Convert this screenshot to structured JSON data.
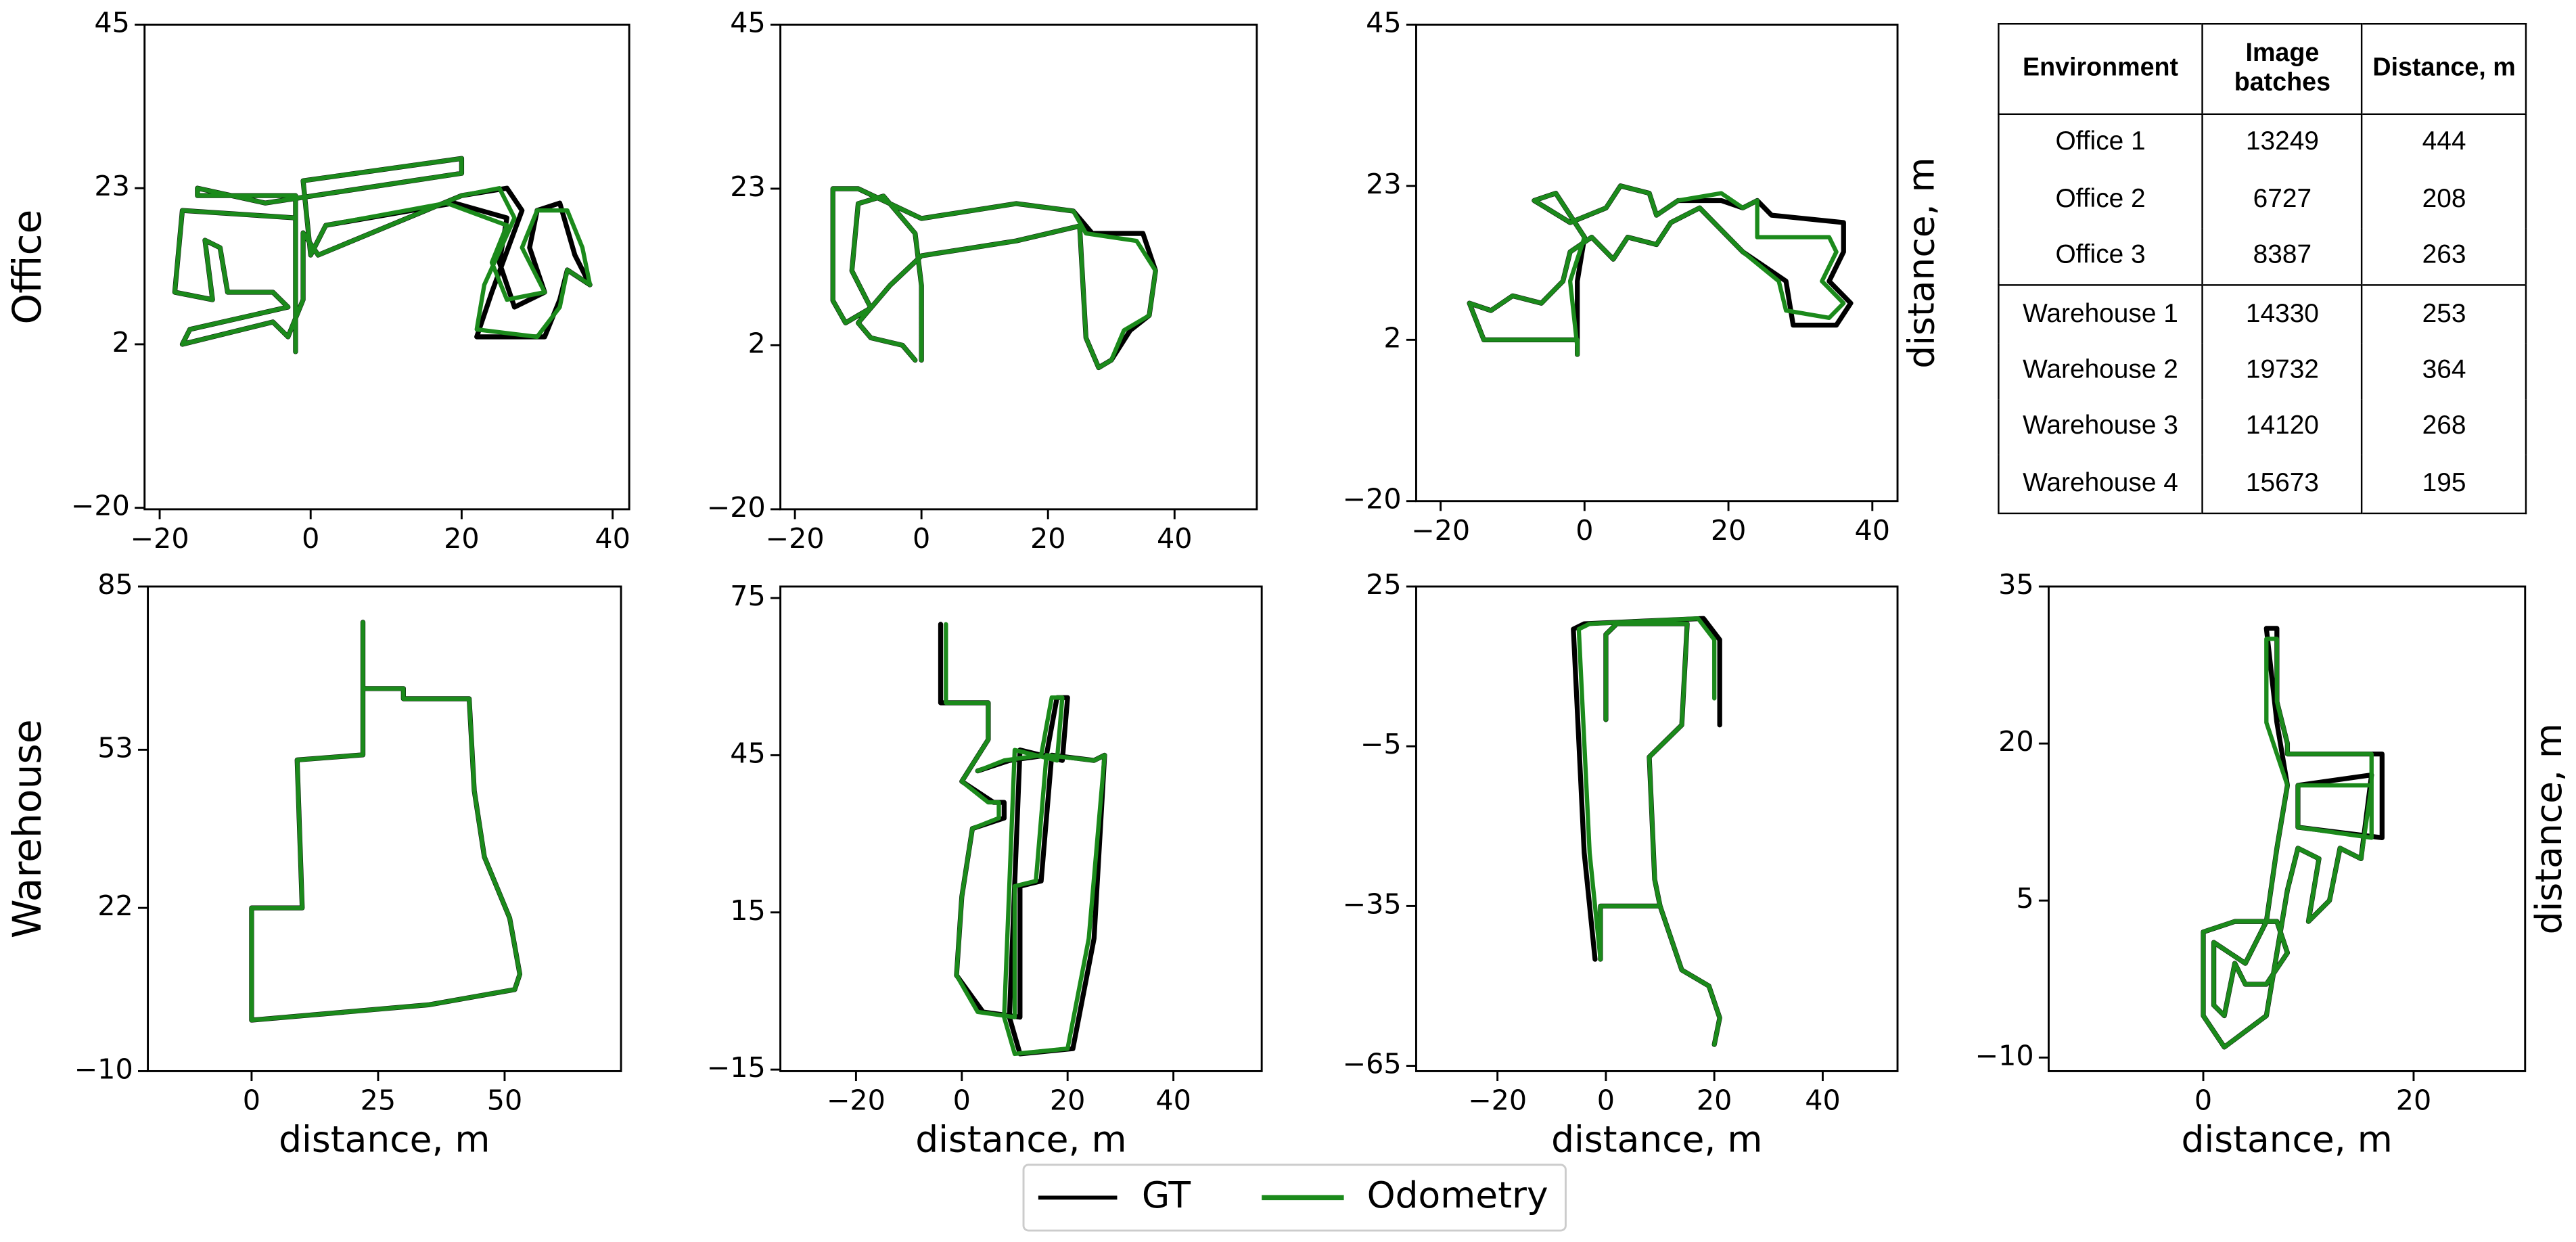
{
  "chart_data": [
    {
      "type": "line",
      "ylabel": "Office",
      "xlim": [
        -22,
        42.2
      ],
      "ylim": [
        -20.2,
        45
      ],
      "xticks": [
        {
          "value": -20,
          "label": "−20"
        },
        0,
        20,
        40
      ],
      "yticks": [
        {
          "value": -20,
          "label": "−20"
        },
        2,
        23,
        45
      ],
      "series": [
        {
          "name": "GT",
          "color": "#000000",
          "x": [
            -2,
            -2,
            -17,
            -18,
            -13,
            -14,
            -12,
            -11,
            -5,
            -3,
            -16,
            -17,
            -5,
            -3,
            -1,
            -1,
            1,
            20,
            26,
            28,
            24,
            22,
            31,
            33,
            34,
            37,
            35,
            33,
            30,
            29,
            31,
            27,
            25,
            26,
            19,
            2,
            0,
            -1,
            20,
            20,
            -6,
            -15,
            -15,
            -2,
            -2
          ],
          "values": [
            1,
            19,
            20,
            9,
            8,
            16,
            15,
            9,
            9,
            7,
            4,
            2,
            5,
            3,
            8,
            17,
            14,
            22,
            23,
            20,
            9,
            3,
            3,
            8,
            12,
            10,
            14,
            21,
            20,
            15,
            9,
            7,
            13,
            19,
            21,
            18,
            14,
            24,
            27,
            25,
            21,
            23,
            22,
            22,
            1
          ]
        },
        {
          "name": "Odometry",
          "color": "#1b8a1b",
          "x": [
            -2,
            -2,
            -17,
            -18,
            -13,
            -14,
            -12,
            -11,
            -5,
            -3,
            -16,
            -17,
            -5,
            -3,
            -1,
            -1,
            1,
            20,
            25,
            27,
            23,
            22,
            30,
            33,
            34,
            37,
            36,
            34,
            30,
            28,
            31,
            26,
            24,
            26,
            18,
            2,
            0,
            -1,
            20,
            20,
            -6,
            -15,
            -15,
            -2,
            -2
          ],
          "values": [
            1,
            19,
            20,
            9,
            8,
            16,
            15,
            9,
            9,
            7,
            4,
            2,
            5,
            3,
            8,
            17,
            14,
            22,
            23,
            19,
            10,
            4,
            3,
            7,
            12,
            10,
            15,
            20,
            20,
            15,
            9,
            8,
            13,
            18,
            21,
            18,
            14,
            24,
            27,
            25,
            21,
            23,
            22,
            22,
            1
          ]
        }
      ]
    },
    {
      "type": "line",
      "xlim": [
        -22.3,
        53
      ],
      "ylim": [
        -20,
        45
      ],
      "xticks": [
        {
          "value": -20,
          "label": "−20"
        },
        0,
        20,
        40
      ],
      "yticks": [
        {
          "value": -20,
          "label": "−20"
        },
        2,
        23,
        45
      ],
      "series": [
        {
          "name": "GT",
          "color": "#000000",
          "x": [
            0,
            0,
            -1,
            -6,
            -10,
            -11,
            -8,
            -12,
            -14,
            -14,
            -10,
            0,
            15,
            24,
            27,
            35,
            37,
            36,
            33,
            30,
            28,
            26,
            25,
            15,
            0,
            -5,
            -10,
            -8,
            -3,
            -1
          ],
          "values": [
            0,
            10,
            17,
            22,
            21,
            12,
            7,
            5,
            8,
            23,
            23,
            19,
            21,
            20,
            17,
            17,
            12,
            6,
            4,
            0,
            -1,
            3,
            18,
            16,
            14,
            10,
            5,
            3,
            2,
            0
          ]
        },
        {
          "name": "Odometry",
          "color": "#1b8a1b",
          "x": [
            0,
            0,
            -1,
            -6,
            -10,
            -11,
            -8,
            -12,
            -14,
            -14,
            -10,
            0,
            15,
            24,
            26,
            34,
            37,
            36,
            32,
            30,
            28,
            26,
            25,
            15,
            0,
            -5,
            -10,
            -8,
            -3,
            -1
          ],
          "values": [
            0,
            10,
            17,
            22,
            21,
            12,
            7,
            5,
            8,
            23,
            23,
            19,
            21,
            20,
            17,
            16,
            12,
            6,
            4,
            0,
            -1,
            3,
            18,
            16,
            14,
            10,
            5,
            3,
            2,
            0
          ]
        }
      ]
    },
    {
      "type": "line",
      "ylabel_right": "distance, m",
      "xlim": [
        -23.4,
        43.5
      ],
      "ylim": [
        -20,
        45
      ],
      "xticks": [
        {
          "value": -20,
          "label": "−20"
        },
        0,
        20,
        40
      ],
      "yticks": [
        {
          "value": -20,
          "label": "−20"
        },
        2,
        23,
        45
      ],
      "series": [
        {
          "name": "GT",
          "color": "#000000",
          "x": [
            -1,
            -1,
            0,
            -4,
            -7,
            -2,
            3,
            5,
            9,
            10,
            13,
            19,
            22,
            24,
            26,
            36,
            36,
            34,
            37,
            35,
            29,
            28,
            22,
            20,
            16,
            12,
            10,
            6,
            4,
            1,
            -2,
            -3,
            -6,
            -10,
            -13,
            -16,
            -14,
            -1,
            -1
          ],
          "values": [
            1,
            10,
            16,
            22,
            21,
            18,
            20,
            23,
            22,
            19,
            21,
            21,
            20,
            21,
            19,
            18,
            14,
            10,
            7,
            4,
            4,
            10,
            14,
            16,
            20,
            18,
            15,
            16,
            13,
            16,
            14,
            10,
            7,
            8,
            6,
            7,
            2,
            2,
            0
          ]
        },
        {
          "name": "Odometry",
          "color": "#1b8a1b",
          "x": [
            -1,
            -2,
            0,
            -4,
            -7,
            -2,
            3,
            5,
            9,
            10,
            13,
            19,
            22,
            24,
            24,
            34,
            35,
            33,
            36,
            34,
            28,
            27,
            22,
            20,
            16,
            12,
            10,
            6,
            4,
            1,
            -2,
            -3,
            -6,
            -10,
            -13,
            -16,
            -14,
            -1,
            -1
          ],
          "values": [
            1,
            10,
            16,
            22,
            21,
            18,
            20,
            23,
            22,
            19,
            21,
            22,
            20,
            21,
            16,
            16,
            14,
            10,
            7,
            5,
            6,
            10,
            14,
            16,
            20,
            18,
            15,
            16,
            13,
            16,
            14,
            10,
            7,
            8,
            6,
            7,
            2,
            2,
            0
          ]
        }
      ]
    },
    {
      "type": "line",
      "ylabel": "Warehouse",
      "xlabel": "distance, m",
      "xlim": [
        -20.5,
        73
      ],
      "ylim": [
        -10,
        85
      ],
      "xticks": [
        0,
        25,
        50
      ],
      "yticks": [
        {
          "value": -10,
          "label": "−10"
        },
        22,
        53,
        85
      ],
      "series": [
        {
          "name": "GT",
          "color": "#000000",
          "x": [
            0,
            0,
            10,
            9,
            22,
            22,
            22,
            30,
            30,
            43,
            44,
            46,
            51,
            53,
            52,
            35,
            0
          ],
          "values": [
            0,
            22,
            22,
            51,
            52,
            78,
            65,
            65,
            63,
            63,
            45,
            32,
            20,
            9,
            6,
            3,
            0
          ]
        },
        {
          "name": "Odometry",
          "color": "#1b8a1b",
          "x": [
            0,
            0,
            10,
            9,
            22,
            22,
            22,
            30,
            30,
            43,
            44,
            46,
            51,
            53,
            52,
            35,
            0
          ],
          "values": [
            0,
            22,
            22,
            51,
            52,
            78,
            65,
            65,
            63,
            63,
            45,
            32,
            20,
            9,
            6,
            3,
            0
          ]
        }
      ]
    },
    {
      "type": "line",
      "xlabel": "distance, m",
      "xlim": [
        -34.3,
        56.7
      ],
      "ylim": [
        -15.3,
        77.2
      ],
      "xticks": [
        {
          "value": -20,
          "label": "−20"
        },
        0,
        20,
        40
      ],
      "yticks": [
        {
          "value": -15,
          "label": "−15"
        },
        15,
        45,
        75
      ],
      "series": [
        {
          "name": "GT",
          "color": "#000000",
          "x": [
            -4,
            -4,
            5,
            5,
            0,
            6,
            8,
            8,
            2,
            0,
            -1,
            4,
            11,
            11,
            15,
            17,
            25,
            27,
            25,
            21,
            11,
            9,
            11,
            19,
            20,
            18,
            16,
            9,
            3
          ],
          "values": [
            70,
            55,
            55,
            48,
            40,
            36,
            36,
            33,
            31,
            18,
            3,
            -4,
            -5,
            20,
            21,
            45,
            44,
            45,
            10,
            -11,
            -12,
            -5,
            46,
            44,
            56,
            56,
            45,
            44,
            42
          ]
        },
        {
          "name": "Odometry",
          "color": "#1b8a1b",
          "x": [
            -3,
            -3,
            5,
            5,
            0,
            5,
            7,
            7,
            2,
            0,
            -1,
            3,
            10,
            10,
            14,
            16,
            25,
            27,
            24,
            20,
            10,
            8,
            10,
            18,
            19,
            17,
            15,
            8,
            3
          ],
          "values": [
            70,
            55,
            55,
            48,
            40,
            36,
            36,
            33,
            31,
            18,
            3,
            -4,
            -5,
            20,
            21,
            45,
            44,
            45,
            10,
            -11,
            -12,
            -5,
            46,
            44,
            56,
            56,
            45,
            44,
            42
          ]
        }
      ]
    },
    {
      "type": "line",
      "xlabel": "distance, m",
      "xlim": [
        -35,
        53.8
      ],
      "ylim": [
        -66,
        25
      ],
      "xticks": [
        {
          "value": -20,
          "label": "−20"
        },
        0,
        20,
        40
      ],
      "yticks": [
        {
          "value": -65,
          "label": "−65"
        },
        {
          "value": -35,
          "label": "−35"
        },
        {
          "value": -5,
          "label": "−5"
        },
        25
      ],
      "series": [
        {
          "name": "GT",
          "color": "#000000",
          "x": [
            0,
            0,
            2,
            15,
            14,
            8,
            9,
            10,
            14,
            19,
            21,
            20,
            null,
            -1,
            -1,
            10,
            11,
            null,
            -2,
            -4,
            -6,
            -4,
            18,
            21,
            21
          ],
          "values": [
            0,
            16,
            18,
            18,
            -1,
            -7,
            -30,
            -35,
            -47,
            -50,
            -56,
            -61,
            null,
            -45,
            -35,
            -35,
            -38,
            null,
            -45,
            -25,
            17,
            18,
            19,
            15,
            -1
          ]
        },
        {
          "name": "Odometry",
          "color": "#1b8a1b",
          "x": [
            0,
            0,
            2,
            15,
            14,
            8,
            9,
            10,
            14,
            19,
            21,
            20,
            null,
            -1,
            -1,
            10,
            11,
            null,
            -1,
            -3,
            -5,
            -3,
            17,
            20,
            20
          ],
          "values": [
            0,
            16,
            18,
            18,
            -1,
            -7,
            -30,
            -35,
            -47,
            -50,
            -56,
            -61,
            null,
            -45,
            -35,
            -35,
            -38,
            null,
            -45,
            -25,
            17,
            18,
            19,
            15,
            4
          ]
        }
      ]
    },
    {
      "type": "line",
      "xlabel": "distance, m",
      "ylabel_right": "distance, m",
      "xlim": [
        -14.7,
        30.6
      ],
      "ylim": [
        -11.3,
        35
      ],
      "xticks": [
        0,
        20
      ],
      "yticks": [
        {
          "value": -10,
          "label": "−10"
        },
        5,
        20,
        35
      ],
      "series": [
        {
          "name": "GT",
          "color": "#000000",
          "x": [
            6,
            7,
            7,
            8,
            8,
            17,
            17,
            9,
            9,
            16,
            15,
            13,
            12,
            10,
            11,
            9,
            8,
            7,
            6,
            2,
            0,
            0,
            3,
            7,
            8,
            6,
            4,
            3,
            2,
            1,
            1,
            4,
            6,
            7,
            8,
            7,
            6
          ],
          "values": [
            31,
            31,
            24,
            20,
            19,
            19,
            11,
            12,
            16,
            17,
            9,
            10,
            5,
            3,
            9,
            10,
            6,
            0,
            -6,
            -9,
            -6,
            2,
            3,
            3,
            0,
            -3,
            -3,
            -1,
            -6,
            -5,
            1,
            -1,
            3,
            10,
            16,
            22,
            31
          ]
        },
        {
          "name": "Odometry",
          "color": "#1b8a1b",
          "x": [
            6,
            7,
            7,
            8,
            8,
            16,
            16,
            9,
            9,
            16,
            15,
            13,
            12,
            10,
            11,
            9,
            8,
            7,
            6,
            2,
            0,
            0,
            3,
            7,
            8,
            6,
            4,
            3,
            2,
            1,
            1,
            4,
            6,
            7,
            8,
            6,
            6
          ],
          "values": [
            30,
            30,
            24,
            20,
            19,
            19,
            11,
            12,
            16,
            16,
            9,
            10,
            5,
            3,
            9,
            10,
            6,
            0,
            -6,
            -9,
            -6,
            2,
            3,
            3,
            0,
            -3,
            -3,
            -1,
            -6,
            -5,
            1,
            -1,
            3,
            10,
            16,
            22,
            30
          ]
        }
      ]
    }
  ],
  "table": {
    "header": [
      "Environment",
      "Image batches",
      "Distance, m"
    ],
    "rows": [
      [
        "Office 1",
        13249,
        444
      ],
      [
        "Office 2",
        6727,
        208
      ],
      [
        "Office 3",
        8387,
        263
      ],
      [
        "Warehouse 1",
        14330,
        253
      ],
      [
        "Warehouse 2",
        19732,
        364
      ],
      [
        "Warehouse 3",
        14120,
        268
      ],
      [
        "Warehouse 4",
        15673,
        195
      ]
    ]
  }
}
